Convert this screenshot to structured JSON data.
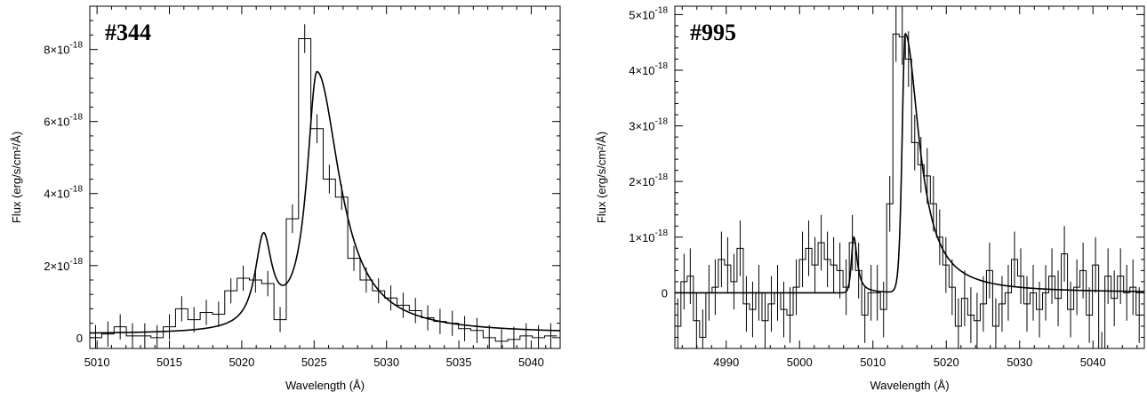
{
  "chart_data": [
    {
      "type": "line",
      "title": "#344",
      "xlabel": "Wavelength (Å)",
      "ylabel": "Flux (erg/s/cm²/Å)",
      "xlim": [
        5009.5,
        5042
      ],
      "ylim": [
        -3e-19,
        9.2e-18
      ],
      "xticks": [
        5010,
        5015,
        5020,
        5025,
        5030,
        5035,
        5040
      ],
      "xtick_labels": [
        "5010",
        "5015",
        "5020",
        "5025",
        "5030",
        "5035",
        "5040"
      ],
      "yticks": [
        0,
        2e-18,
        4e-18,
        6e-18,
        8e-18
      ],
      "ytick_labels": [
        {
          "base": "0",
          "exp": ""
        },
        {
          "base": "2×10",
          "exp": "-18"
        },
        {
          "base": "4×10",
          "exp": "-18"
        },
        {
          "base": "6×10",
          "exp": "-18"
        },
        {
          "base": "8×10",
          "exp": "-18"
        }
      ],
      "series": [
        {
          "kind": "step",
          "bin_width": 0.85,
          "x": [
            5009.9,
            5010.75,
            5011.6,
            5012.45,
            5013.3,
            5014.15,
            5015.0,
            5015.85,
            5016.7,
            5017.55,
            5018.4,
            5019.25,
            5020.1,
            5020.95,
            5021.8,
            5022.65,
            5023.5,
            5024.35,
            5025.2,
            5026.05,
            5026.9,
            5027.75,
            5028.6,
            5029.45,
            5030.3,
            5031.15,
            5032.0,
            5032.85,
            5033.7,
            5034.55,
            5035.4,
            5036.25,
            5037.1,
            5037.95,
            5038.8,
            5039.65,
            5040.5,
            5041.35
          ],
          "y": [
            0.0,
            0.1,
            0.3,
            0.05,
            0.05,
            0.0,
            0.3,
            0.8,
            0.5,
            0.7,
            0.65,
            1.3,
            1.65,
            1.6,
            1.5,
            0.5,
            3.3,
            8.3,
            5.8,
            4.4,
            3.9,
            2.2,
            1.6,
            1.3,
            1.1,
            0.9,
            0.75,
            0.55,
            0.45,
            0.4,
            0.25,
            0.2,
            0.0,
            -0.1,
            -0.05,
            0.05,
            0.0,
            0.05
          ],
          "yerr": [
            0.35,
            0.35,
            0.35,
            0.35,
            0.35,
            0.35,
            0.35,
            0.35,
            0.35,
            0.35,
            0.35,
            0.35,
            0.35,
            0.35,
            0.35,
            0.35,
            0.4,
            0.4,
            0.4,
            0.4,
            0.35,
            0.35,
            0.35,
            0.35,
            0.35,
            0.35,
            0.35,
            0.35,
            0.35,
            0.35,
            0.35,
            0.35,
            0.35,
            0.35,
            0.35,
            0.35,
            0.35,
            0.35
          ]
        },
        {
          "kind": "model",
          "components": [
            {
              "center": 5021.5,
              "amp": 2.45,
              "gamma": 0.7
            },
            {
              "center": 5025.2,
              "amp": 7.2,
              "gamma": 0.85,
              "tail": 1.9
            }
          ],
          "baseline": 0.1
        }
      ]
    },
    {
      "type": "line",
      "title": "#995",
      "xlabel": "Wavelength (Å)",
      "ylabel": "Flux (erg/s/cm²/Å)",
      "xlim": [
        4983,
        5047
      ],
      "ylim": [
        -1e-18,
        5.15e-18
      ],
      "xticks": [
        4990,
        5000,
        5010,
        5020,
        5030,
        5040
      ],
      "xtick_labels": [
        "4990",
        "5000",
        "5010",
        "5020",
        "5030",
        "5040"
      ],
      "yticks": [
        0,
        1e-18,
        2e-18,
        3e-18,
        4e-18,
        5e-18
      ],
      "ytick_labels": [
        {
          "base": "0",
          "exp": ""
        },
        {
          "base": "1×10",
          "exp": "-18"
        },
        {
          "base": "2×10",
          "exp": "-18"
        },
        {
          "base": "3×10",
          "exp": "-18"
        },
        {
          "base": "4×10",
          "exp": "-18"
        },
        {
          "base": "5×10",
          "exp": "-18"
        }
      ],
      "series": [
        {
          "kind": "step",
          "bin_width": 0.85,
          "x": [
            4983.4,
            4984.25,
            4985.1,
            4985.95,
            4986.8,
            4987.65,
            4988.5,
            4989.35,
            4990.2,
            4991.05,
            4991.9,
            4992.75,
            4993.6,
            4994.45,
            4995.3,
            4996.15,
            4997.0,
            4997.85,
            4998.7,
            4999.55,
            5000.4,
            5001.25,
            5002.1,
            5002.95,
            5003.8,
            5004.65,
            5005.5,
            5006.35,
            5007.2,
            5008.05,
            5008.9,
            5009.75,
            5010.6,
            5011.45,
            5012.3,
            5013.15,
            5014.0,
            5014.85,
            5015.7,
            5016.55,
            5017.4,
            5018.25,
            5019.1,
            5019.95,
            5020.8,
            5021.65,
            5022.5,
            5023.35,
            5024.2,
            5025.05,
            5025.9,
            5026.75,
            5027.6,
            5028.45,
            5029.3,
            5030.15,
            5031.0,
            5031.85,
            5032.7,
            5033.55,
            5034.4,
            5035.25,
            5036.1,
            5036.95,
            5037.8,
            5038.65,
            5039.5,
            5040.35,
            5041.2,
            5042.05,
            5042.9,
            5043.75,
            5044.6,
            5045.45,
            5046.3
          ],
          "y": [
            -0.6,
            0.2,
            0.3,
            -0.5,
            -0.8,
            0.0,
            0.1,
            0.6,
            0.5,
            0.2,
            0.8,
            -0.2,
            -0.3,
            0.0,
            -0.5,
            -0.2,
            0.0,
            -0.3,
            -0.4,
            0.1,
            0.6,
            0.8,
            0.5,
            0.9,
            0.6,
            0.5,
            0.4,
            0.1,
            0.9,
            0.4,
            -0.4,
            0.0,
            0.0,
            -0.3,
            1.6,
            4.65,
            4.6,
            4.2,
            2.7,
            2.3,
            2.1,
            1.6,
            1.0,
            0.5,
            0.1,
            -0.6,
            -0.1,
            -0.4,
            -0.5,
            -0.2,
            0.4,
            -0.6,
            -0.2,
            0.0,
            0.6,
            0.3,
            -0.2,
            0.0,
            -0.3,
            0.0,
            0.3,
            -0.1,
            0.7,
            -0.3,
            0.1,
            0.4,
            -0.4,
            0.5,
            -1.2,
            0.3,
            -0.1,
            0.3,
            0.0,
            0.1,
            -0.4
          ],
          "yerr": [
            0.5,
            0.5,
            0.5,
            0.5,
            0.5,
            0.5,
            0.5,
            0.5,
            0.5,
            0.5,
            0.5,
            0.5,
            0.5,
            0.5,
            0.5,
            0.5,
            0.5,
            0.5,
            0.5,
            0.5,
            0.5,
            0.5,
            0.5,
            0.5,
            0.5,
            0.5,
            0.5,
            0.5,
            0.5,
            0.5,
            0.5,
            0.5,
            0.5,
            0.5,
            0.5,
            0.5,
            0.5,
            0.5,
            0.5,
            0.5,
            0.5,
            0.5,
            0.5,
            0.5,
            0.5,
            0.5,
            0.5,
            0.5,
            0.5,
            0.5,
            0.5,
            0.5,
            0.5,
            0.5,
            0.5,
            0.5,
            0.5,
            0.5,
            0.5,
            0.5,
            0.5,
            0.5,
            0.5,
            0.5,
            0.5,
            0.5,
            0.5,
            0.5,
            0.5,
            0.5,
            0.5,
            0.5,
            0.5,
            0.5,
            0.5
          ]
        },
        {
          "kind": "model",
          "components": [
            {
              "center": 5007.4,
              "amp": 1.0,
              "gamma": 0.55,
              "cutoff": true
            },
            {
              "center": 5014.4,
              "amp": 4.65,
              "gamma": 0.7,
              "tail": 2.3,
              "cutoff": true
            }
          ],
          "baseline": 0.0
        }
      ]
    }
  ]
}
